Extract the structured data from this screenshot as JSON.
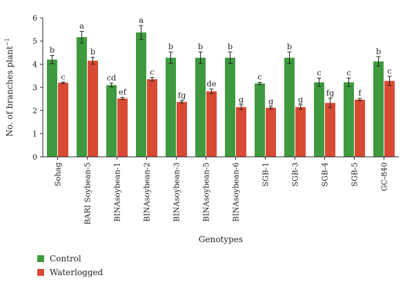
{
  "chart_data": {
    "type": "bar",
    "title": "",
    "xlabel": "Genotypes",
    "ylabel": "No. of branches plant",
    "ylabel_sup": "−1",
    "ylim": [
      0,
      6
    ],
    "yticks": [
      0,
      1,
      2,
      3,
      4,
      5,
      6
    ],
    "grid": false,
    "legend_position": "bottom-left",
    "categories": [
      "Sohag",
      "BARI Soybean-5",
      "BINAsoybean-1",
      "BINAsoybean-2",
      "BINAsoybean-3",
      "BINAsoybean-5",
      "BINAsoybean-6",
      "SGB-1",
      "SGB-3",
      "SGB-4",
      "SGB-5",
      "GC-840"
    ],
    "series": [
      {
        "name": "Control",
        "color": "#3f9a3f",
        "values": [
          4.2,
          5.17,
          3.1,
          5.37,
          4.28,
          4.28,
          4.28,
          3.17,
          4.28,
          3.22,
          3.22,
          4.12
        ],
        "errors": [
          0.18,
          0.25,
          0.08,
          0.3,
          0.25,
          0.25,
          0.25,
          0.05,
          0.25,
          0.18,
          0.18,
          0.2
        ],
        "labels": [
          "b",
          "a",
          "cd",
          "a",
          "b",
          "b",
          "b",
          "c",
          "b",
          "c",
          "c",
          "b"
        ]
      },
      {
        "name": "Waterlogged",
        "color": "#d84a33",
        "values": [
          3.2,
          4.15,
          2.52,
          3.35,
          2.37,
          2.83,
          2.15,
          2.12,
          2.15,
          2.33,
          2.47,
          3.28
        ],
        "errors": [
          0.03,
          0.15,
          0.05,
          0.08,
          0.05,
          0.1,
          0.1,
          0.05,
          0.1,
          0.2,
          0.05,
          0.2
        ],
        "labels": [
          "c",
          "b",
          "ef",
          "c",
          "fg",
          "de",
          "g",
          "g",
          "g",
          "fg",
          "f",
          "c"
        ]
      }
    ]
  }
}
